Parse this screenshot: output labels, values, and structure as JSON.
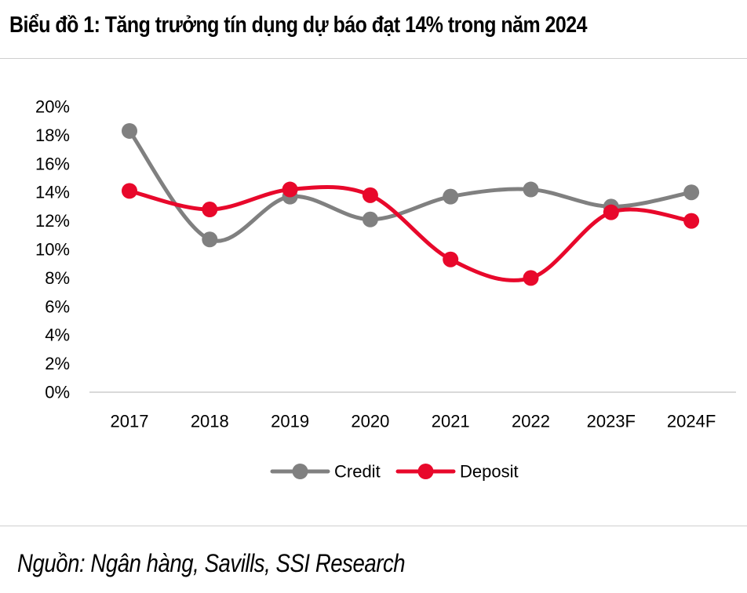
{
  "title": "Biểu đồ 1: Tăng trưởng tín dụng dự báo đạt 14% trong năm 2024",
  "source": "Nguồn: Ngân hàng, Savills, SSI Research",
  "chart_data": {
    "type": "line",
    "categories": [
      "2017",
      "2018",
      "2019",
      "2020",
      "2021",
      "2022",
      "2023F",
      "2024F"
    ],
    "series": [
      {
        "name": "Credit",
        "color": "#808080",
        "values": [
          18.3,
          10.7,
          13.7,
          12.1,
          13.7,
          14.2,
          13.0,
          14.0
        ]
      },
      {
        "name": "Deposit",
        "color": "#e8082b",
        "values": [
          14.1,
          12.8,
          14.2,
          13.8,
          9.3,
          8.0,
          12.6,
          12.0
        ]
      }
    ],
    "ylim": [
      0,
      20
    ],
    "yticks": [
      "0%",
      "2%",
      "4%",
      "6%",
      "8%",
      "10%",
      "12%",
      "14%",
      "16%",
      "18%",
      "20%"
    ],
    "ytick_values": [
      0,
      2,
      4,
      6,
      8,
      10,
      12,
      14,
      16,
      18,
      20
    ],
    "grid": false,
    "legend_position": "bottom-center",
    "smooth": true
  }
}
